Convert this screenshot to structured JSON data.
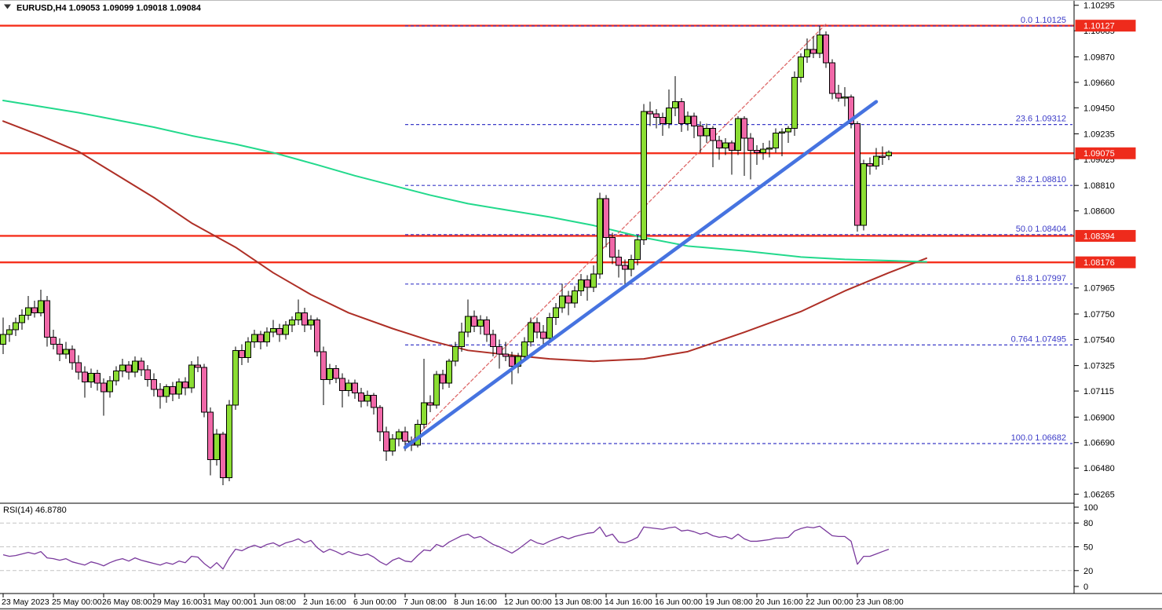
{
  "header": {
    "title": "EURUSD,H4  1.09053 1.09099 1.09018 1.09084",
    "symbol": "EURUSD",
    "timeframe": "H4",
    "last_ohlc": {
      "open": "1.09053",
      "high": "1.09099",
      "low": "1.09018",
      "close": "1.09084"
    }
  },
  "colors": {
    "bull": "#8BDD33",
    "bear": "#F068A8",
    "wick": "#000000",
    "ma_fast": "#22D98C",
    "ma_slow": "#AE2F26",
    "trend": "#4673E0",
    "trend_dash": "#DE6A6A",
    "hline": "#F5301D",
    "fib": "#3C3CC8",
    "badge_bg": "#EE2B1C",
    "badge_text": "#FFFFFF",
    "rsi": "#7A3A9D",
    "rsi_grid": "#C4C4C4",
    "axis_text": "#000000",
    "border": "#000000"
  },
  "chart_data": {
    "type": "candlestick",
    "title": "EURUSD H4 price chart with moving averages, Fibonacci retracement and RSI",
    "x_label_step": 8,
    "x_labels": [
      "23 May 2023",
      "25 May 00:00",
      "26 May 08:00",
      "29 May 16:00",
      "31 May 00:00",
      "1 Jun 08:00",
      "2 Jun 16:00",
      "6 Jun 00:00",
      "7 Jun 08:00",
      "8 Jun 16:00",
      "12 Jun 00:00",
      "13 Jun 08:00",
      "14 Jun 16:00",
      "16 Jun 00:00",
      "19 Jun 08:00",
      "20 Jun 16:00",
      "22 Jun 00:00",
      "23 Jun 08:00"
    ],
    "y_ticks": [
      "1.10295",
      "1.10085",
      "1.09870",
      "1.09660",
      "1.09450",
      "1.09235",
      "1.09025",
      "1.08810",
      "1.08600",
      "1.07965",
      "1.07750",
      "1.07540",
      "1.07325",
      "1.07115",
      "1.06900",
      "1.06690",
      "1.06480",
      "1.06265"
    ],
    "price_badges": [
      "1.10127",
      "1.09075",
      "1.08394",
      "1.08176"
    ],
    "h_lines": [
      1.10127,
      1.09075,
      1.08394,
      1.08176
    ],
    "fib_start_index": 64,
    "fib_levels": [
      {
        "label": "0.0",
        "price_text": "1.10125",
        "price": 1.10125
      },
      {
        "label": "23.6",
        "price_text": "1.09312",
        "price": 1.09312
      },
      {
        "label": "38.2",
        "price_text": "1.08810",
        "price": 1.0881
      },
      {
        "label": "50.0",
        "price_text": "1.08404",
        "price": 1.08404
      },
      {
        "label": "61.8",
        "price_text": "1.07997",
        "price": 1.07997
      },
      {
        "label": "0.764",
        "price_text": "1.07495",
        "price": 1.07495
      },
      {
        "label": "100.0",
        "price_text": "1.06682",
        "price": 1.06682
      }
    ],
    "trendlines": [
      {
        "name": "support-trendline",
        "x1": 64,
        "p1": 1.0665,
        "x2": 139,
        "p2": 1.095,
        "style": "solid",
        "width": 4.5,
        "color_key": "trend"
      },
      {
        "name": "momentum-trendline",
        "x1": 64,
        "p1": 1.0665,
        "x2": 131,
        "p2": 1.1014,
        "style": "dashed",
        "width": 1.3,
        "color_key": "trend_dash"
      }
    ],
    "ma_fast": [
      [
        0,
        1.0951
      ],
      [
        6,
        1.0946
      ],
      [
        12,
        1.0941
      ],
      [
        18,
        1.0935
      ],
      [
        24,
        1.0929
      ],
      [
        30,
        1.0922
      ],
      [
        37,
        1.0915
      ],
      [
        43,
        1.0908
      ],
      [
        50,
        1.0898
      ],
      [
        56,
        1.0889
      ],
      [
        62,
        1.0881
      ],
      [
        68,
        1.0873
      ],
      [
        74,
        1.0866
      ],
      [
        81,
        1.086
      ],
      [
        87,
        1.0855
      ],
      [
        94,
        1.0848
      ],
      [
        102,
        1.0838
      ],
      [
        109,
        1.0831
      ],
      [
        118,
        1.0827
      ],
      [
        127,
        1.0822
      ],
      [
        134,
        1.082
      ],
      [
        141,
        1.0819
      ],
      [
        147,
        1.0818
      ]
    ],
    "ma_slow": [
      [
        0,
        1.0934
      ],
      [
        6,
        1.0922
      ],
      [
        12,
        1.0909
      ],
      [
        18,
        1.089
      ],
      [
        24,
        1.0871
      ],
      [
        30,
        1.085
      ],
      [
        37,
        1.083
      ],
      [
        43,
        1.0809
      ],
      [
        49,
        1.0791
      ],
      [
        55,
        1.0776
      ],
      [
        62,
        1.0763
      ],
      [
        68,
        1.0753
      ],
      [
        74,
        1.0745
      ],
      [
        81,
        1.0741
      ],
      [
        87,
        1.0738
      ],
      [
        94,
        1.0736
      ],
      [
        102,
        1.0738
      ],
      [
        109,
        1.0744
      ],
      [
        118,
        1.076
      ],
      [
        127,
        1.0777
      ],
      [
        134,
        1.0794
      ],
      [
        141,
        1.0809
      ],
      [
        147,
        1.0821
      ]
    ],
    "candles": [
      [
        1.075,
        1.0772,
        1.0742,
        1.0758
      ],
      [
        1.0758,
        1.0766,
        1.0752,
        1.0762
      ],
      [
        1.0762,
        1.0772,
        1.0757,
        1.0768
      ],
      [
        1.0768,
        1.0779,
        1.0762,
        1.0774
      ],
      [
        1.0774,
        1.079,
        1.077,
        1.078
      ],
      [
        1.078,
        1.0786,
        1.0772,
        1.0776
      ],
      [
        1.0776,
        1.0795,
        1.0773,
        1.0786
      ],
      [
        1.0786,
        1.079,
        1.0748,
        1.0756
      ],
      [
        1.0756,
        1.0762,
        1.0746,
        1.075
      ],
      [
        1.075,
        1.0755,
        1.0736,
        1.0742
      ],
      [
        1.0742,
        1.0752,
        1.0738,
        1.0746
      ],
      [
        1.0746,
        1.0749,
        1.0729,
        1.0735
      ],
      [
        1.0735,
        1.0741,
        1.0721,
        1.0727
      ],
      [
        1.0727,
        1.0732,
        1.0706,
        1.0719
      ],
      [
        1.0719,
        1.073,
        1.0714,
        1.0726
      ],
      [
        1.0726,
        1.0729,
        1.0712,
        1.0718
      ],
      [
        1.0718,
        1.0722,
        1.0691,
        1.0711
      ],
      [
        1.0711,
        1.0724,
        1.0706,
        1.072
      ],
      [
        1.072,
        1.0732,
        1.0716,
        1.0728
      ],
      [
        1.0728,
        1.0738,
        1.0723,
        1.0733
      ],
      [
        1.0733,
        1.0736,
        1.0721,
        1.0727
      ],
      [
        1.0727,
        1.074,
        1.0723,
        1.0736
      ],
      [
        1.0736,
        1.0739,
        1.0724,
        1.0729
      ],
      [
        1.0729,
        1.0733,
        1.0715,
        1.0721
      ],
      [
        1.0721,
        1.0726,
        1.0707,
        1.0713
      ],
      [
        1.0713,
        1.0718,
        1.0697,
        1.0707
      ],
      [
        1.0707,
        1.0717,
        1.0702,
        1.0715
      ],
      [
        1.0715,
        1.0719,
        1.0703,
        1.0709
      ],
      [
        1.0709,
        1.0722,
        1.0705,
        1.0719
      ],
      [
        1.0719,
        1.0723,
        1.0708,
        1.0714
      ],
      [
        1.0714,
        1.0736,
        1.071,
        1.0733
      ],
      [
        1.0733,
        1.074,
        1.0727,
        1.0731
      ],
      [
        1.0731,
        1.0734,
        1.069,
        1.0694
      ],
      [
        1.0694,
        1.0698,
        1.0642,
        1.0655
      ],
      [
        1.0655,
        1.068,
        1.065,
        1.0676
      ],
      [
        1.0676,
        1.0678,
        1.0634,
        1.064
      ],
      [
        1.064,
        1.0704,
        1.0637,
        1.07
      ],
      [
        1.07,
        1.0748,
        1.0696,
        1.0745
      ],
      [
        1.0745,
        1.075,
        1.0733,
        1.0739
      ],
      [
        1.0739,
        1.0756,
        1.0735,
        1.0752
      ],
      [
        1.0752,
        1.0762,
        1.0747,
        1.0758
      ],
      [
        1.0758,
        1.0761,
        1.0746,
        1.0752
      ],
      [
        1.0752,
        1.0764,
        1.0748,
        1.076
      ],
      [
        1.076,
        1.077,
        1.0756,
        1.0763
      ],
      [
        1.0763,
        1.0767,
        1.0752,
        1.0758
      ],
      [
        1.0758,
        1.0769,
        1.0754,
        1.0766
      ],
      [
        1.0766,
        1.0773,
        1.076,
        1.077
      ],
      [
        1.077,
        1.0787,
        1.0766,
        1.0776
      ],
      [
        1.0776,
        1.078,
        1.076,
        1.0766
      ],
      [
        1.0766,
        1.0774,
        1.0762,
        1.077
      ],
      [
        1.077,
        1.0772,
        1.074,
        1.0744
      ],
      [
        1.0744,
        1.0748,
        1.07,
        1.0721
      ],
      [
        1.0721,
        1.0734,
        1.0717,
        1.073
      ],
      [
        1.073,
        1.0733,
        1.0718,
        1.0722
      ],
      [
        1.0722,
        1.0726,
        1.0698,
        1.0712
      ],
      [
        1.0712,
        1.0721,
        1.0707,
        1.0718
      ],
      [
        1.0718,
        1.0721,
        1.0705,
        1.071
      ],
      [
        1.071,
        1.0714,
        1.0698,
        1.0703
      ],
      [
        1.0703,
        1.0712,
        1.0699,
        1.0708
      ],
      [
        1.0708,
        1.071,
        1.0692,
        1.0698
      ],
      [
        1.0698,
        1.07,
        1.067,
        1.0678
      ],
      [
        1.0678,
        1.0682,
        1.0654,
        1.0662
      ],
      [
        1.0662,
        1.0676,
        1.0658,
        1.0672
      ],
      [
        1.0672,
        1.068,
        1.0666,
        1.0678
      ],
      [
        1.0678,
        1.0682,
        1.0662,
        1.067
      ],
      [
        1.067,
        1.0674,
        1.0662,
        1.0667
      ],
      [
        1.0667,
        1.0688,
        1.0665,
        1.0684
      ],
      [
        1.0684,
        1.0738,
        1.068,
        1.0702
      ],
      [
        1.0702,
        1.0708,
        1.0694,
        1.07
      ],
      [
        1.07,
        1.0728,
        1.0697,
        1.0725
      ],
      [
        1.0725,
        1.0729,
        1.0713,
        1.0718
      ],
      [
        1.0718,
        1.0738,
        1.0714,
        1.0736
      ],
      [
        1.0736,
        1.0752,
        1.0732,
        1.0748
      ],
      [
        1.0748,
        1.0768,
        1.0744,
        1.076
      ],
      [
        1.076,
        1.0787,
        1.0756,
        1.0773
      ],
      [
        1.0773,
        1.0778,
        1.076,
        1.0765
      ],
      [
        1.0765,
        1.0774,
        1.0758,
        1.077
      ],
      [
        1.077,
        1.0773,
        1.0752,
        1.0758
      ],
      [
        1.0758,
        1.0762,
        1.074,
        1.0748
      ],
      [
        1.0748,
        1.0754,
        1.073,
        1.0742
      ],
      [
        1.0742,
        1.0752,
        1.0736,
        1.074
      ],
      [
        1.074,
        1.0744,
        1.0717,
        1.0732
      ],
      [
        1.0732,
        1.0743,
        1.0726,
        1.074
      ],
      [
        1.074,
        1.0756,
        1.0736,
        1.0752
      ],
      [
        1.0752,
        1.0772,
        1.0748,
        1.0768
      ],
      [
        1.0768,
        1.0772,
        1.0755,
        1.076
      ],
      [
        1.076,
        1.0766,
        1.0748,
        1.0755
      ],
      [
        1.0755,
        1.0776,
        1.0751,
        1.0772
      ],
      [
        1.0772,
        1.0784,
        1.0766,
        1.078
      ],
      [
        1.078,
        1.08,
        1.0776,
        1.079
      ],
      [
        1.079,
        1.0794,
        1.0774,
        1.0784
      ],
      [
        1.0784,
        1.0798,
        1.078,
        1.0794
      ],
      [
        1.0794,
        1.0808,
        1.079,
        1.0803
      ],
      [
        1.0803,
        1.0807,
        1.0786,
        1.0797
      ],
      [
        1.0797,
        1.0815,
        1.0793,
        1.0808
      ],
      [
        1.0808,
        1.0875,
        1.0804,
        1.087
      ],
      [
        1.087,
        1.0873,
        1.083,
        1.0838
      ],
      [
        1.0838,
        1.0842,
        1.0816,
        1.0822
      ],
      [
        1.0822,
        1.0828,
        1.0805,
        1.0815
      ],
      [
        1.0815,
        1.082,
        1.0798,
        1.0812
      ],
      [
        1.0812,
        1.0824,
        1.0806,
        1.082
      ],
      [
        1.082,
        1.084,
        1.0815,
        1.0836
      ],
      [
        1.0836,
        1.0948,
        1.0832,
        1.0942
      ],
      [
        1.0942,
        1.095,
        1.093,
        1.094
      ],
      [
        1.094,
        1.0944,
        1.0928,
        1.0937
      ],
      [
        1.0937,
        1.0941,
        1.0922,
        1.0932
      ],
      [
        1.0932,
        1.096,
        1.0928,
        1.0945
      ],
      [
        1.0945,
        1.0971,
        1.0938,
        1.095
      ],
      [
        1.095,
        1.0953,
        1.0925,
        1.0932
      ],
      [
        1.0932,
        1.0942,
        1.0926,
        1.0938
      ],
      [
        1.0938,
        1.0941,
        1.092,
        1.093
      ],
      [
        1.093,
        1.0934,
        1.0908,
        1.0922
      ],
      [
        1.0922,
        1.0932,
        1.0916,
        1.0928
      ],
      [
        1.0928,
        1.093,
        1.0896,
        1.0918
      ],
      [
        1.0918,
        1.0922,
        1.0902,
        1.0912
      ],
      [
        1.0912,
        1.092,
        1.0906,
        1.0916
      ],
      [
        1.0916,
        1.0918,
        1.089,
        1.091
      ],
      [
        1.091,
        1.0938,
        1.0906,
        1.0936
      ],
      [
        1.0936,
        1.0938,
        1.0889,
        1.092
      ],
      [
        1.092,
        1.0924,
        1.0886,
        1.091
      ],
      [
        1.091,
        1.0914,
        1.0898,
        1.0908
      ],
      [
        1.0908,
        1.0916,
        1.0902,
        1.0911
      ],
      [
        1.0911,
        1.0918,
        1.0904,
        1.0912
      ],
      [
        1.0912,
        1.0928,
        1.0908,
        1.0924
      ],
      [
        1.0924,
        1.0928,
        1.0905,
        1.0925
      ],
      [
        1.0925,
        1.093,
        1.0916,
        1.0928
      ],
      [
        1.0928,
        1.0975,
        1.0922,
        1.097
      ],
      [
        1.097,
        1.099,
        1.0966,
        1.0987
      ],
      [
        1.0987,
        1.1002,
        1.0982,
        1.0993
      ],
      [
        1.0993,
        1.1004,
        1.0986,
        1.099
      ],
      [
        1.099,
        1.10125,
        1.0986,
        1.1005
      ],
      [
        1.1005,
        1.1008,
        1.0978,
        1.0982
      ],
      [
        1.0982,
        1.0985,
        1.0952,
        1.0957
      ],
      [
        1.0957,
        1.0964,
        1.095,
        1.0953
      ],
      [
        1.0953,
        1.0962,
        1.0946,
        1.0954
      ],
      [
        1.0954,
        1.0956,
        1.0928,
        1.0932
      ],
      [
        1.0932,
        1.0934,
        1.0843,
        1.0848
      ],
      [
        1.0848,
        1.0902,
        1.0844,
        1.0899
      ],
      [
        1.0899,
        1.0904,
        1.089,
        1.0897
      ],
      [
        1.0897,
        1.0912,
        1.0894,
        1.0905
      ],
      [
        1.0905,
        1.0913,
        1.0898,
        1.0904
      ],
      [
        1.09053,
        1.09099,
        1.09018,
        1.09084
      ]
    ],
    "rsi": {
      "label": "RSI(14) 46.8780",
      "period": 14,
      "value": 46.878,
      "levels": [
        80,
        50,
        20
      ],
      "scale_labels": [
        "100",
        "80",
        "50",
        "20",
        "0"
      ],
      "values": [
        40,
        38,
        39,
        41,
        43,
        41,
        44,
        36,
        35,
        33,
        35,
        31,
        29,
        27,
        31,
        29,
        26,
        30,
        33,
        35,
        32,
        36,
        33,
        31,
        29,
        27,
        30,
        28,
        32,
        30,
        38,
        37,
        29,
        23,
        30,
        22,
        36,
        47,
        45,
        49,
        52,
        49,
        53,
        55,
        51,
        55,
        57,
        60,
        55,
        58,
        49,
        43,
        47,
        44,
        40,
        44,
        41,
        39,
        41,
        37,
        31,
        27,
        33,
        36,
        32,
        31,
        39,
        46,
        45,
        53,
        50,
        56,
        60,
        64,
        66,
        61,
        63,
        58,
        53,
        50,
        46,
        42,
        47,
        53,
        59,
        55,
        53,
        57,
        60,
        63,
        60,
        63,
        65,
        67,
        68,
        75,
        63,
        66,
        56,
        55,
        58,
        62,
        75,
        74,
        73,
        72,
        74,
        75,
        70,
        71,
        69,
        66,
        68,
        64,
        62,
        63,
        60,
        66,
        60,
        57,
        57,
        58,
        59,
        61,
        61,
        62,
        70,
        73,
        75,
        74,
        76,
        70,
        64,
        63,
        63,
        57,
        28,
        38,
        38,
        41,
        44,
        46.88
      ]
    }
  }
}
